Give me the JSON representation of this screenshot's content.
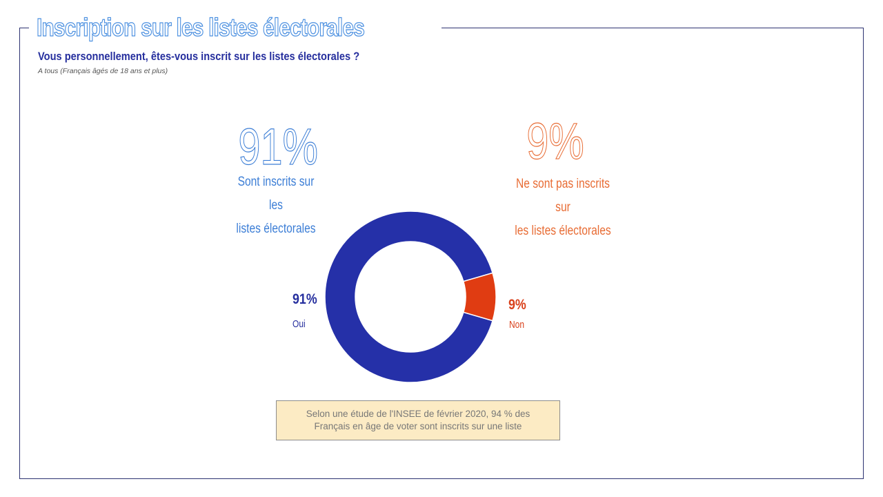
{
  "header": {
    "title": "Inscription sur les listes électorales",
    "question": "Vous personnellement, êtes-vous inscrit sur les listes électorales ?",
    "base": "A tous (Français âgés de 18 ans et plus)"
  },
  "highlights": {
    "yes": {
      "pct": "91%",
      "label_line1": "Sont inscrits sur les",
      "label_line2": "listes électorales"
    },
    "no": {
      "pct": "9%",
      "label_line1": "Ne sont pas inscrits sur",
      "label_line2": "les listes électorales"
    }
  },
  "note": {
    "line1": "Selon une étude de l'INSEE de février 2020, 94 % des",
    "line2": "Français en âge de voter sont inscrits sur une liste"
  },
  "colors": {
    "yes": "#2530a8",
    "no": "#e03c12",
    "accent_blue": "#4a8fe0",
    "accent_orange": "#e86c34",
    "note_bg": "#fcebc4"
  },
  "chart_data": {
    "type": "pie",
    "variant": "donut",
    "categories": [
      "Oui",
      "Non"
    ],
    "values": [
      91,
      9
    ],
    "value_labels": [
      "91%",
      "9%"
    ],
    "colors": [
      "#2530a8",
      "#e03c12"
    ]
  }
}
